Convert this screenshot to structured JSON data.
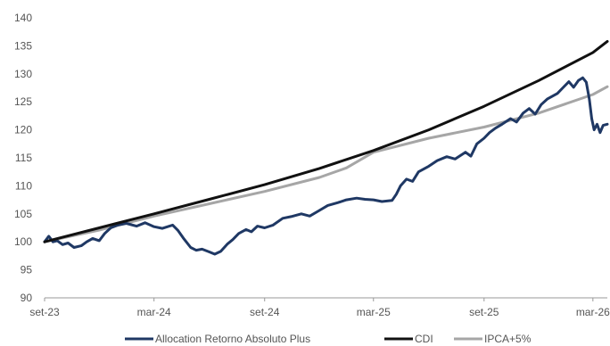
{
  "chart_data": {
    "type": "line",
    "title": "",
    "xlabel": "",
    "ylabel": "",
    "ylim": [
      90,
      140
    ],
    "yticks": [
      90,
      95,
      100,
      105,
      110,
      115,
      120,
      125,
      130,
      135,
      140
    ],
    "xlim": [
      "2023-09-01",
      "2026-03-25"
    ],
    "xticks": [
      {
        "date": "2023-09-01",
        "label": "set-23"
      },
      {
        "date": "2024-03-01",
        "label": "mar-24"
      },
      {
        "date": "2024-09-01",
        "label": "set-24"
      },
      {
        "date": "2025-03-01",
        "label": "mar-25"
      },
      {
        "date": "2025-09-01",
        "label": "set-25"
      },
      {
        "date": "2026-03-01",
        "label": "mar-26"
      }
    ],
    "grid": false,
    "legend_position": "bottom",
    "series": [
      {
        "name": "Allocation Retorno Absoluto Plus",
        "color": "#1f3864",
        "points": [
          [
            "2023-09-01",
            100.0
          ],
          [
            "2023-09-08",
            101.0
          ],
          [
            "2023-09-15",
            100.0
          ],
          [
            "2023-09-22",
            100.2
          ],
          [
            "2023-10-01",
            99.5
          ],
          [
            "2023-10-10",
            99.8
          ],
          [
            "2023-10-20",
            99.0
          ],
          [
            "2023-11-01",
            99.3
          ],
          [
            "2023-11-10",
            100.0
          ],
          [
            "2023-11-20",
            100.6
          ],
          [
            "2023-12-01",
            100.2
          ],
          [
            "2023-12-10",
            101.5
          ],
          [
            "2023-12-20",
            102.5
          ],
          [
            "2024-01-01",
            103.0
          ],
          [
            "2024-01-15",
            103.3
          ],
          [
            "2024-02-01",
            102.8
          ],
          [
            "2024-02-15",
            103.4
          ],
          [
            "2024-03-01",
            102.7
          ],
          [
            "2024-03-15",
            102.4
          ],
          [
            "2024-04-01",
            103.0
          ],
          [
            "2024-04-10",
            102.0
          ],
          [
            "2024-04-20",
            100.5
          ],
          [
            "2024-05-01",
            99.0
          ],
          [
            "2024-05-10",
            98.5
          ],
          [
            "2024-05-20",
            98.7
          ],
          [
            "2024-06-01",
            98.2
          ],
          [
            "2024-06-10",
            97.8
          ],
          [
            "2024-06-20",
            98.3
          ],
          [
            "2024-07-01",
            99.6
          ],
          [
            "2024-07-10",
            100.4
          ],
          [
            "2024-07-20",
            101.5
          ],
          [
            "2024-08-01",
            102.2
          ],
          [
            "2024-08-10",
            101.8
          ],
          [
            "2024-08-20",
            102.8
          ],
          [
            "2024-09-01",
            102.5
          ],
          [
            "2024-09-15",
            103.0
          ],
          [
            "2024-10-01",
            104.2
          ],
          [
            "2024-10-15",
            104.5
          ],
          [
            "2024-11-01",
            105.0
          ],
          [
            "2024-11-15",
            104.6
          ],
          [
            "2024-12-01",
            105.6
          ],
          [
            "2024-12-15",
            106.5
          ],
          [
            "2025-01-01",
            107.0
          ],
          [
            "2025-01-15",
            107.5
          ],
          [
            "2025-02-01",
            107.8
          ],
          [
            "2025-02-15",
            107.6
          ],
          [
            "2025-03-01",
            107.5
          ],
          [
            "2025-03-15",
            107.2
          ],
          [
            "2025-04-01",
            107.4
          ],
          [
            "2025-04-08",
            108.5
          ],
          [
            "2025-04-15",
            110.0
          ],
          [
            "2025-04-25",
            111.2
          ],
          [
            "2025-05-05",
            110.8
          ],
          [
            "2025-05-15",
            112.5
          ],
          [
            "2025-06-01",
            113.5
          ],
          [
            "2025-06-15",
            114.5
          ],
          [
            "2025-07-01",
            115.2
          ],
          [
            "2025-07-15",
            114.8
          ],
          [
            "2025-08-01",
            116.0
          ],
          [
            "2025-08-10",
            115.3
          ],
          [
            "2025-08-20",
            117.5
          ],
          [
            "2025-09-01",
            118.5
          ],
          [
            "2025-09-10",
            119.5
          ],
          [
            "2025-09-20",
            120.3
          ],
          [
            "2025-10-01",
            121.0
          ],
          [
            "2025-10-15",
            122.0
          ],
          [
            "2025-10-25",
            121.4
          ],
          [
            "2025-11-05",
            123.0
          ],
          [
            "2025-11-15",
            123.8
          ],
          [
            "2025-11-25",
            122.8
          ],
          [
            "2025-12-05",
            124.5
          ],
          [
            "2025-12-15",
            125.5
          ],
          [
            "2026-01-01",
            126.5
          ],
          [
            "2026-01-10",
            127.5
          ],
          [
            "2026-01-20",
            128.6
          ],
          [
            "2026-01-28",
            127.6
          ],
          [
            "2026-02-05",
            128.8
          ],
          [
            "2026-02-12",
            129.3
          ],
          [
            "2026-02-18",
            128.5
          ],
          [
            "2026-02-23",
            125.5
          ],
          [
            "2026-02-27",
            122.0
          ],
          [
            "2026-03-03",
            120.0
          ],
          [
            "2026-03-08",
            121.0
          ],
          [
            "2026-03-13",
            119.5
          ],
          [
            "2026-03-18",
            120.8
          ],
          [
            "2026-03-25",
            121.0
          ]
        ]
      },
      {
        "name": "CDI",
        "color": "#111111",
        "points": [
          [
            "2023-09-01",
            100.0
          ],
          [
            "2023-12-01",
            102.5
          ],
          [
            "2024-03-01",
            105.0
          ],
          [
            "2024-06-01",
            107.6
          ],
          [
            "2024-09-01",
            110.2
          ],
          [
            "2024-12-01",
            113.1
          ],
          [
            "2025-03-01",
            116.3
          ],
          [
            "2025-06-01",
            120.0
          ],
          [
            "2025-09-01",
            124.2
          ],
          [
            "2025-12-01",
            128.8
          ],
          [
            "2026-03-01",
            133.8
          ],
          [
            "2026-03-25",
            135.8
          ]
        ]
      },
      {
        "name": "IPCA+5%",
        "color": "#a6a6a6",
        "points": [
          [
            "2023-09-01",
            100.0
          ],
          [
            "2023-12-01",
            102.1
          ],
          [
            "2024-03-01",
            104.6
          ],
          [
            "2024-06-01",
            106.8
          ],
          [
            "2024-09-01",
            109.0
          ],
          [
            "2024-12-01",
            111.5
          ],
          [
            "2025-01-15",
            113.2
          ],
          [
            "2025-03-01",
            116.0
          ],
          [
            "2025-06-01",
            118.5
          ],
          [
            "2025-09-01",
            120.5
          ],
          [
            "2025-12-01",
            123.0
          ],
          [
            "2026-03-01",
            126.3
          ],
          [
            "2026-03-25",
            127.7
          ]
        ]
      }
    ]
  }
}
